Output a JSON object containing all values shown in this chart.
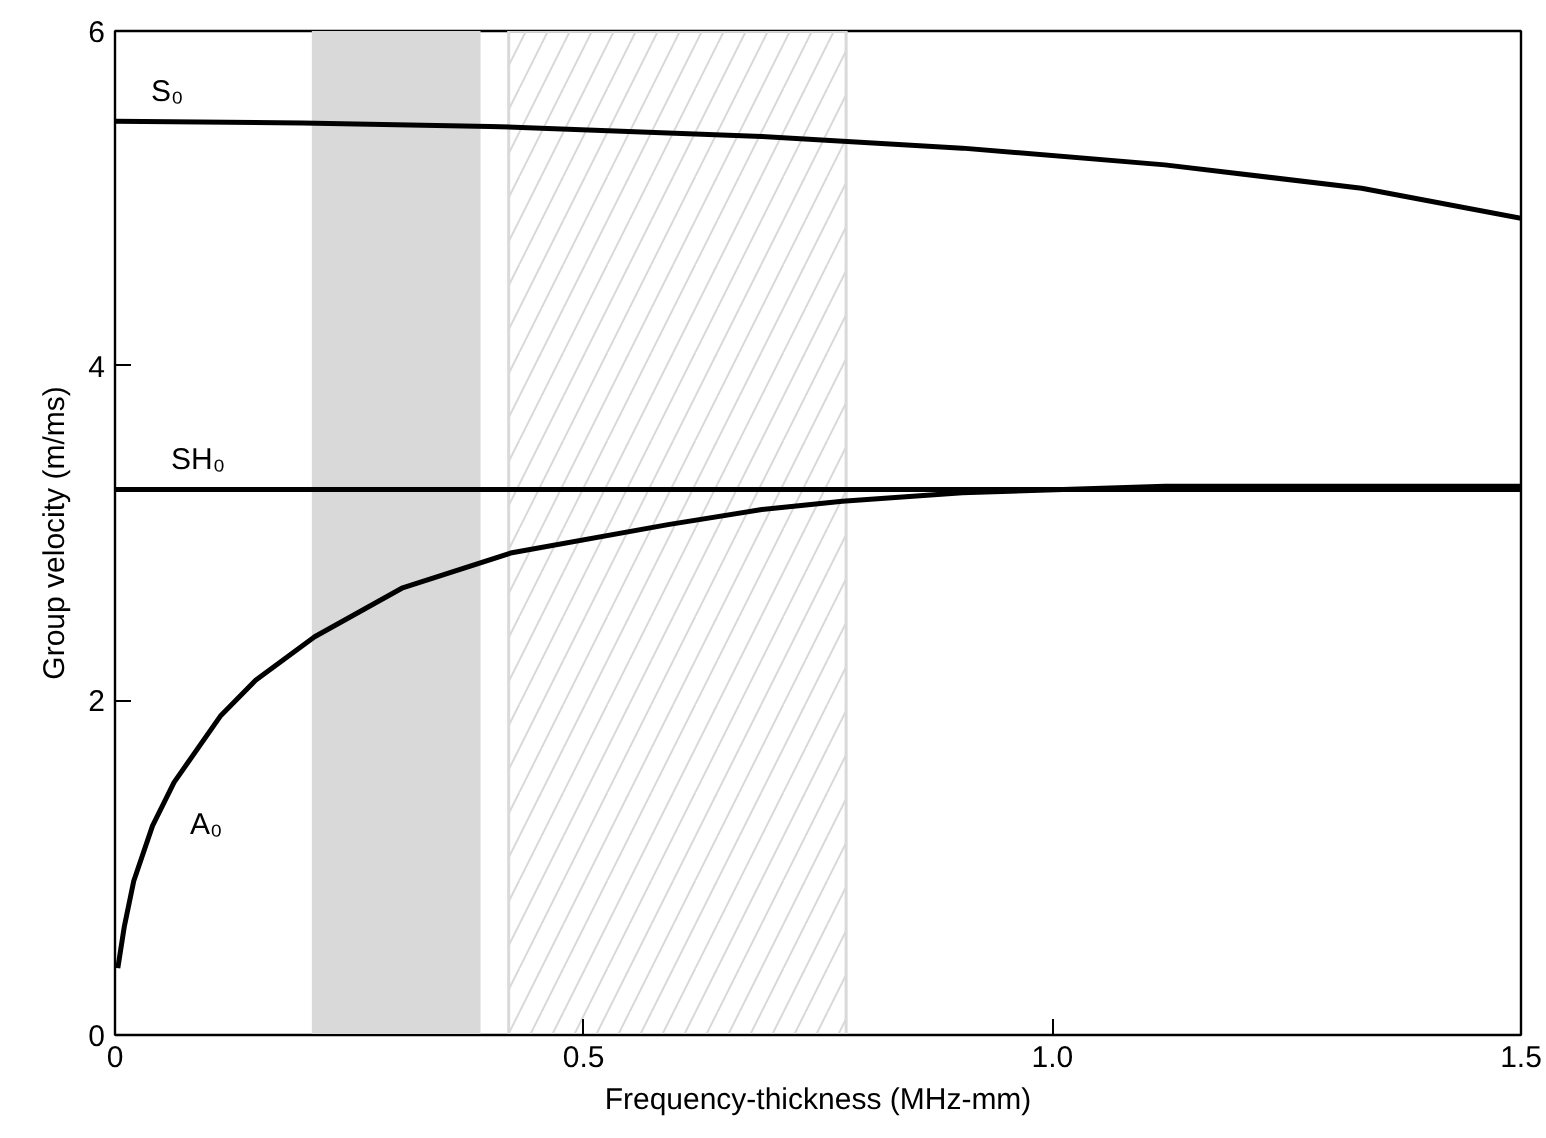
{
  "chart_data": {
    "type": "line",
    "xlabel": "Frequency-thickness (MHz-mm)",
    "ylabel": "Group velocity (m/ms)",
    "xlim": [
      0,
      1.5
    ],
    "ylim": [
      0,
      6
    ],
    "xticks": [
      0,
      0.5,
      {
        "value": 1.0,
        "label": "1.0"
      },
      1.5
    ],
    "yticks": [
      0,
      2,
      4,
      6
    ],
    "grid": false,
    "marker": "none",
    "line_style": "solid",
    "series": [
      {
        "name": "S₀",
        "color": "#000000",
        "x": [
          0,
          0.2,
          0.4,
          0.69,
          0.904,
          1.12,
          1.33,
          1.5
        ],
        "values": [
          5.46,
          5.45,
          5.43,
          5.37,
          5.3,
          5.2,
          5.06,
          4.88
        ]
      },
      {
        "name": "SH₀",
        "color": "#000000",
        "x": [
          0,
          1.5
        ],
        "values": [
          3.26,
          3.26
        ]
      },
      {
        "name": "A₀",
        "color": "#000000",
        "x": [
          0.003,
          0.01,
          0.02,
          0.04,
          0.063,
          0.113,
          0.15,
          0.213,
          0.306,
          0.422,
          0.59,
          0.69,
          0.776,
          0.904,
          1.12,
          1.5
        ],
        "values": [
          0.4,
          0.65,
          0.92,
          1.25,
          1.51,
          1.91,
          2.12,
          2.38,
          2.67,
          2.88,
          3.05,
          3.14,
          3.19,
          3.24,
          3.28,
          3.28
        ]
      }
    ],
    "bands": [
      {
        "axis": "x",
        "from": 0.21,
        "to": 0.39,
        "color": "#d9d9d9"
      },
      {
        "axis": "x",
        "from": 0.42,
        "to": 0.78,
        "color": "#d9d9d9"
      }
    ]
  }
}
